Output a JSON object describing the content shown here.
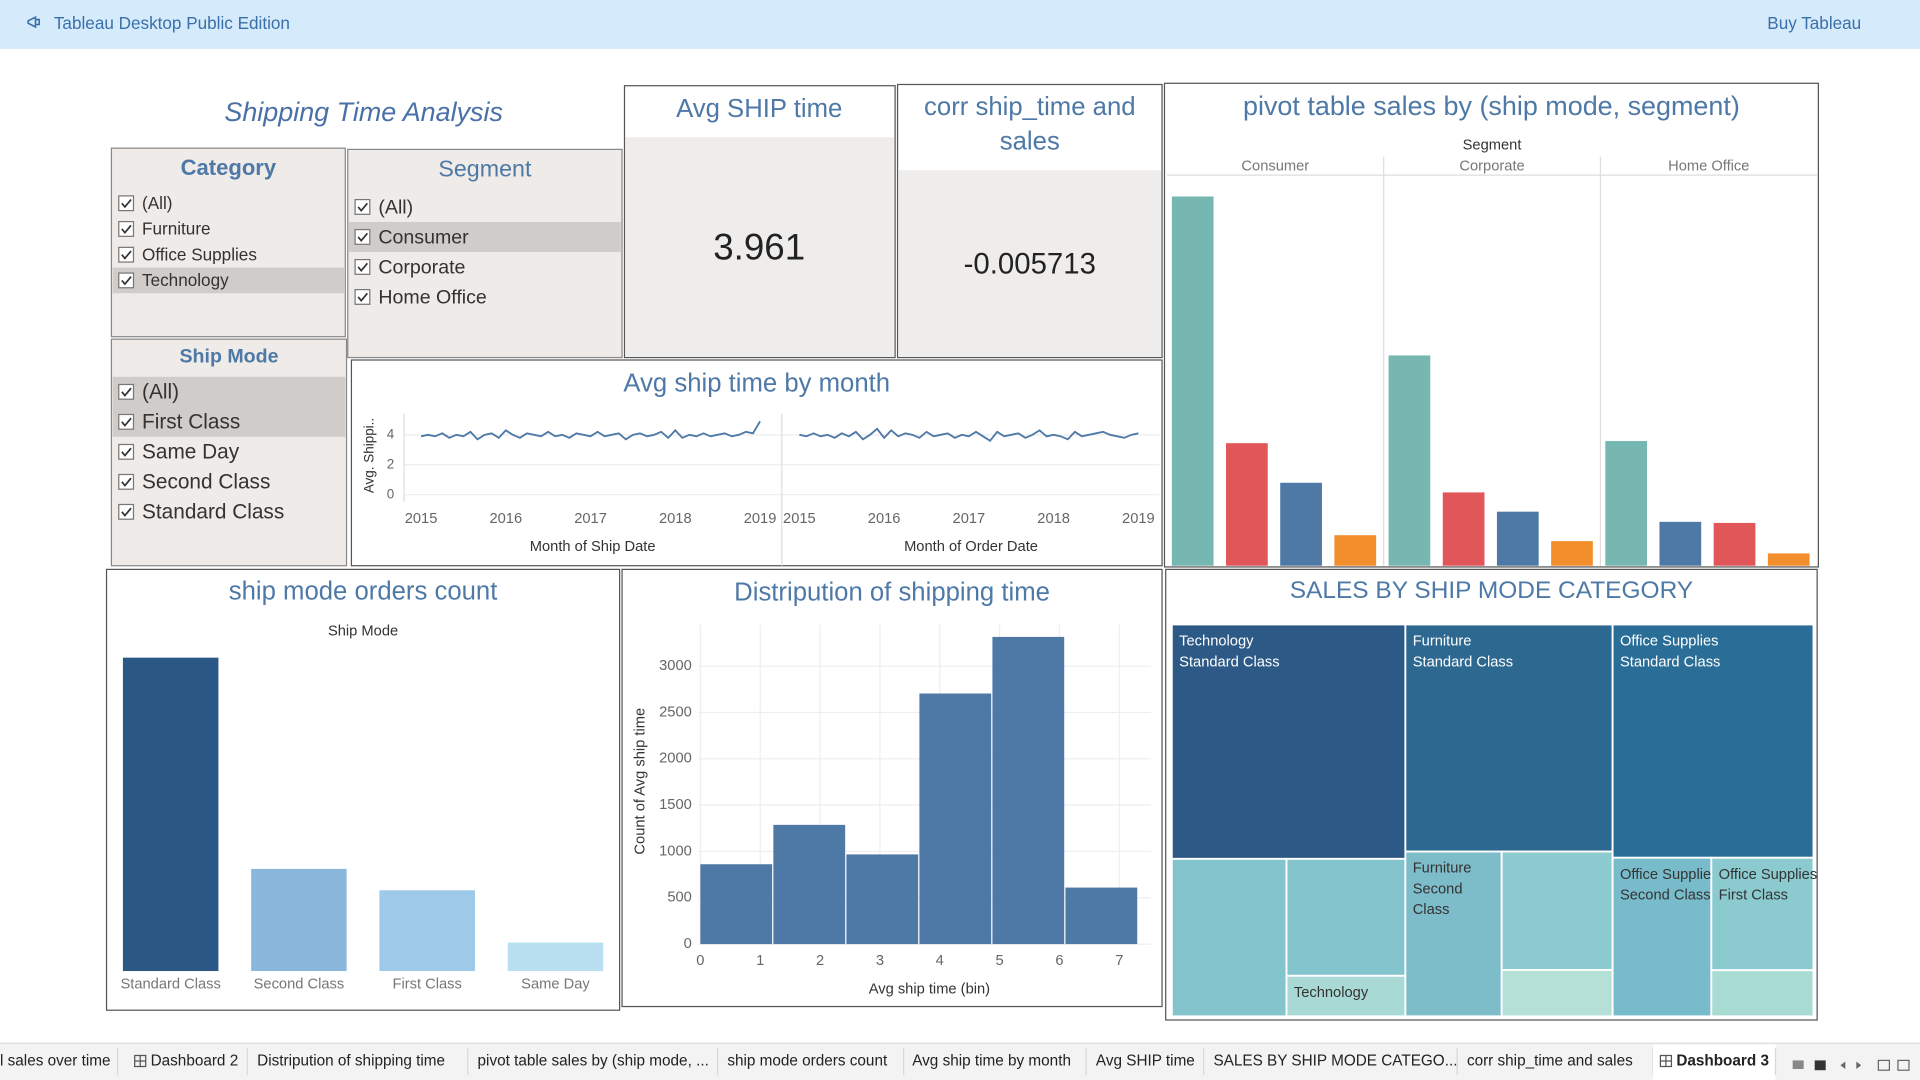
{
  "app_bar": {
    "title": "Tableau Desktop Public Edition",
    "action": "Buy Tableau"
  },
  "dashboard_title": "Shipping Time Analysis",
  "filters": [
    {
      "title": "Category",
      "items": [
        "(All)",
        "Furniture",
        "Office Supplies",
        "Technology"
      ],
      "highlighted": [
        3
      ]
    },
    {
      "title": "Segment",
      "items": [
        "(All)",
        "Consumer",
        "Corporate",
        "Home Office"
      ],
      "highlighted": [
        1
      ]
    },
    {
      "title": "Ship Mode",
      "items": [
        "(All)",
        "First Class",
        "Same Day",
        "Second Class",
        "Standard Class"
      ],
      "highlighted": [
        0,
        1
      ]
    }
  ],
  "kpis": [
    {
      "title": "Avg SHIP time",
      "value": 3.961
    },
    {
      "title": "corr ship_time and sales",
      "value": -0.005713
    }
  ],
  "chart_data": [
    {
      "type": "bar",
      "title": "pivot table sales by (ship mode, segment)",
      "column_header": "Segment",
      "ylim": [
        0,
        730000
      ],
      "panels": [
        {
          "name": "Consumer",
          "values": [
            690000,
            229000,
            155000,
            57000
          ],
          "colors": [
            "#76b7b2",
            "#e15759",
            "#4e79a7",
            "#f28e2b"
          ]
        },
        {
          "name": "Corporate",
          "values": [
            393000,
            137000,
            101000,
            46000
          ],
          "colors": [
            "#76b7b2",
            "#e15759",
            "#4e79a7",
            "#f28e2b"
          ]
        },
        {
          "name": "Home Office",
          "values": [
            233000,
            82000,
            80000,
            23000
          ],
          "colors": [
            "#76b7b2",
            "#4e79a7",
            "#e15759",
            "#f28e2b"
          ]
        }
      ]
    },
    {
      "type": "line",
      "title": "Avg ship time by month",
      "y_label": "Avg. Shippi..",
      "color": "#4e79a7",
      "grid": true,
      "ylim": [
        0,
        5.4
      ],
      "yticks": [
        0,
        2,
        4
      ],
      "xlim": [
        2014.8,
        2019.25
      ],
      "xticks": [
        2015,
        2016,
        2017,
        2018,
        2019
      ],
      "panels": [
        {
          "x_label": "Month of Ship Date",
          "values": [
            3.9,
            4.0,
            3.9,
            4.1,
            3.8,
            4.0,
            3.9,
            4.2,
            3.7,
            4.0,
            4.1,
            3.8,
            4.3,
            4.0,
            3.8,
            4.1,
            4.0,
            3.9,
            4.2,
            3.9,
            4.0,
            3.8,
            4.1,
            4.0,
            3.9,
            4.2,
            3.9,
            4.0,
            4.1,
            3.7,
            4.0,
            4.1,
            3.9,
            4.0,
            4.2,
            3.8,
            4.3,
            3.8,
            4.0,
            3.9,
            4.1,
            3.9,
            4.0,
            4.1,
            3.9,
            4.0,
            4.2,
            4.1,
            4.9
          ]
        },
        {
          "x_label": "Month of Order Date",
          "values": [
            4.0,
            3.9,
            4.1,
            3.9,
            4.0,
            3.8,
            4.1,
            3.9,
            4.2,
            3.7,
            4.0,
            4.4,
            3.8,
            4.3,
            3.9,
            4.1,
            4.0,
            3.8,
            4.2,
            3.9,
            4.0,
            4.1,
            3.8,
            4.0,
            3.9,
            4.2,
            3.9,
            3.6,
            4.2,
            3.9,
            4.0,
            4.1,
            3.8,
            4.0,
            4.3,
            3.9,
            4.0,
            3.9,
            3.7,
            4.2,
            3.9,
            4.0,
            4.1,
            4.2,
            4.0,
            3.9,
            3.8,
            4.0,
            4.1
          ]
        }
      ]
    },
    {
      "type": "bar",
      "title": "ship mode orders count",
      "column_header": "Ship Mode",
      "categories": [
        "Standard Class",
        "Second Class",
        "First Class",
        "Same Day"
      ],
      "values": [
        5968,
        1945,
        1538,
        543
      ],
      "colors": [
        "#2a5783",
        "#8ab8dc",
        "#9fc9e8",
        "#b8e0f0"
      ],
      "ylim": [
        0,
        6250
      ]
    },
    {
      "type": "histogram",
      "title": "Distripution of shipping time",
      "x_label": "Avg ship time (bin)",
      "y_label": "Count of Avg ship time",
      "color": "#4e79a7",
      "grid": true,
      "bins": [
        0,
        1.22,
        2.44,
        3.66,
        4.88,
        6.1,
        7.32
      ],
      "values": [
        862,
        1287,
        968,
        2705,
        3316,
        610
      ],
      "xlim": [
        -0.04,
        7.53
      ],
      "xticks": [
        0,
        1,
        2,
        3,
        4,
        5,
        6,
        7
      ],
      "ylim": [
        0,
        3450
      ],
      "yticks": [
        0,
        500,
        1000,
        1500,
        2000,
        2500,
        3000
      ]
    },
    {
      "type": "treemap",
      "title": "SALES BY SHIP MODE CATEGORY",
      "groups": [
        {
          "items": [
            {
              "value": 500000,
              "color": "#2c5985",
              "label": [
                "Technology",
                "Standard Class"
              ]
            },
            {
              "value": 165000,
              "color": "#84c4cc"
            },
            {
              "value": 127000,
              "color": "#84c4cc"
            },
            {
              "value": 44000,
              "color": "#a9d9d4",
              "label": [
                "Technology"
              ]
            }
          ]
        },
        {
          "items": [
            {
              "value": 430000,
              "color": "#2d6890",
              "label": [
                "Furniture",
                "Standard Class"
              ]
            },
            {
              "value": 145000,
              "color": "#7dbcc9",
              "label": [
                "Furniture",
                "Second",
                "Class"
              ]
            },
            {
              "value": 120000,
              "color": "#8ccbcf"
            },
            {
              "value": 47000,
              "color": "#b5e0d8"
            }
          ]
        },
        {
          "items": [
            {
              "value": 428000,
              "color": "#2a6e97",
              "label": [
                "Office Supplies",
                "Standard Class"
              ]
            },
            {
              "value": 143000,
              "color": "#78bccb",
              "label": [
                "Office Supplies",
                "Second Class"
              ]
            },
            {
              "value": 105000,
              "color": "#8bcbd0",
              "label": [
                "Office Supplies",
                "First Class"
              ]
            },
            {
              "value": 43000,
              "color": "#a8dcd3"
            }
          ]
        }
      ]
    }
  ],
  "tabs": [
    "l sales over time",
    "Dashboard 2",
    "Distripution of shipping time",
    "pivot table sales by (ship mode, ...",
    "ship mode orders count",
    "Avg ship time by month",
    "Avg SHIP time",
    "SALES BY SHIP MODE CATEGO...",
    "corr ship_time and sales",
    "Dashboard 3"
  ],
  "dashboard_tabs": [
    1,
    9
  ],
  "active_tab": 9
}
